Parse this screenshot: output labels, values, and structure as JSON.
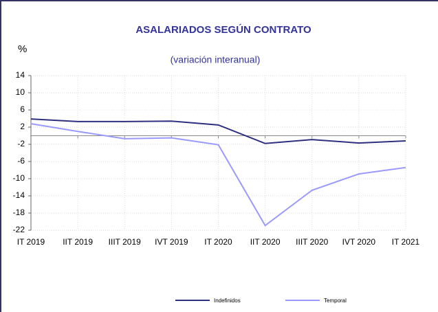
{
  "chart_data": {
    "type": "line",
    "title": "ASALARIADOS SEGÚN CONTRATO",
    "subtitle": "(variación interanual)",
    "y_label": "%",
    "categories": [
      "IT 2019",
      "IIT 2019",
      "IIIT 2019",
      "IVT 2019",
      "IT 2020",
      "IIT 2020",
      "IIIT 2020",
      "IVT 2020",
      "IT 2021"
    ],
    "series": [
      {
        "name": "Indefinidos",
        "color": "#2e2e80",
        "values": [
          3.9,
          3.3,
          3.3,
          3.4,
          2.5,
          -1.8,
          -0.9,
          -1.7,
          -1.2
        ]
      },
      {
        "name": "Temporal",
        "color": "#9999ff",
        "values": [
          2.8,
          1.0,
          -0.7,
          -0.5,
          -2.1,
          -20.9,
          -12.7,
          -8.9,
          -7.4
        ]
      }
    ],
    "ylim": [
      -22,
      14
    ],
    "yticks": [
      14,
      10,
      6,
      2,
      -2,
      -6,
      -10,
      -14,
      -18,
      -22
    ],
    "grid": true,
    "legend": "bottom"
  }
}
